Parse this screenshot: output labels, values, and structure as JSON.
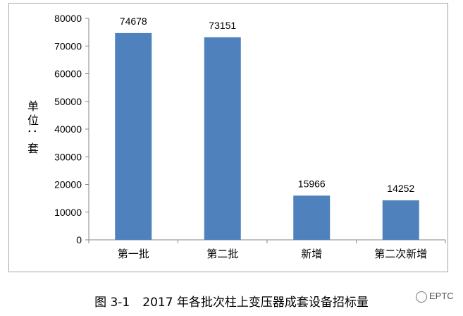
{
  "chart_data": {
    "type": "bar",
    "categories": [
      "第一批",
      "第二批",
      "新增",
      "第二次新增"
    ],
    "values": [
      74678,
      73151,
      15966,
      14252
    ],
    "data_labels": [
      "74678",
      "73151",
      "15966",
      "14252"
    ],
    "ylabel": "单位：套",
    "ylim": [
      0,
      80000
    ],
    "y_ticks": [
      "0",
      "10000",
      "20000",
      "30000",
      "40000",
      "50000",
      "60000",
      "70000",
      "80000"
    ],
    "grid": false,
    "bar_color": "#4f81bd"
  },
  "caption": {
    "figure_no": "图 3-1",
    "text": "2017 年各批次柱上变压器成套设备招标量"
  },
  "watermark": {
    "text": "EPTC"
  }
}
